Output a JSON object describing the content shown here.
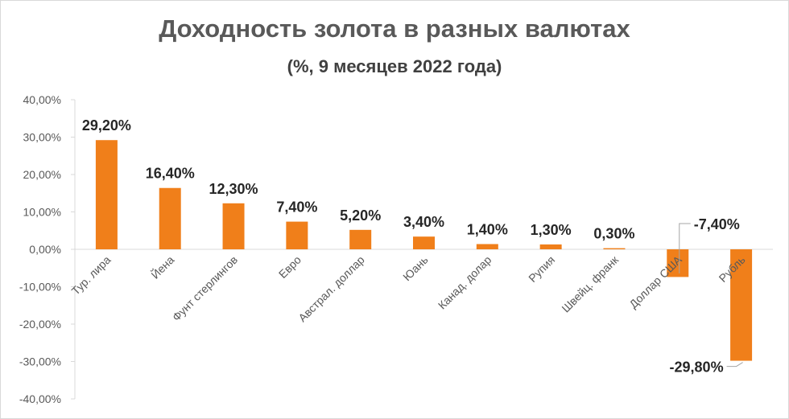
{
  "chart_data": {
    "type": "bar",
    "title": "Доходность золота в разных валютах",
    "subtitle": "(%, 9 месяцев 2022 года)",
    "categories": [
      "Тур. лира",
      "Йена",
      "Фунт стерлингов",
      "Евро",
      "Австрал. доллар",
      "Юань",
      "Канад. долар",
      "Рупия",
      "Швейц. франк",
      "Доллар США",
      "Рубль"
    ],
    "values": [
      29.2,
      16.4,
      12.3,
      7.4,
      5.2,
      3.4,
      1.4,
      1.3,
      0.3,
      -7.4,
      -29.8
    ],
    "data_labels": [
      "29,20%",
      "16,40%",
      "12,30%",
      "7,40%",
      "5,20%",
      "3,40%",
      "1,40%",
      "1,30%",
      "0,30%",
      "-7,40%",
      "-29,80%"
    ],
    "y_ticks": [
      40,
      30,
      20,
      10,
      0,
      -10,
      -20,
      -30,
      -40
    ],
    "y_tick_labels": [
      "40,00%",
      "30,00%",
      "20,00%",
      "10,00%",
      "0,00%",
      "-10,00%",
      "-20,00%",
      "-30,00%",
      "-40,00%"
    ],
    "ylim": [
      -40,
      40
    ],
    "xlabel": "",
    "ylabel": "",
    "grid": false,
    "legend": "none",
    "bar_color": "#f07f1a"
  }
}
